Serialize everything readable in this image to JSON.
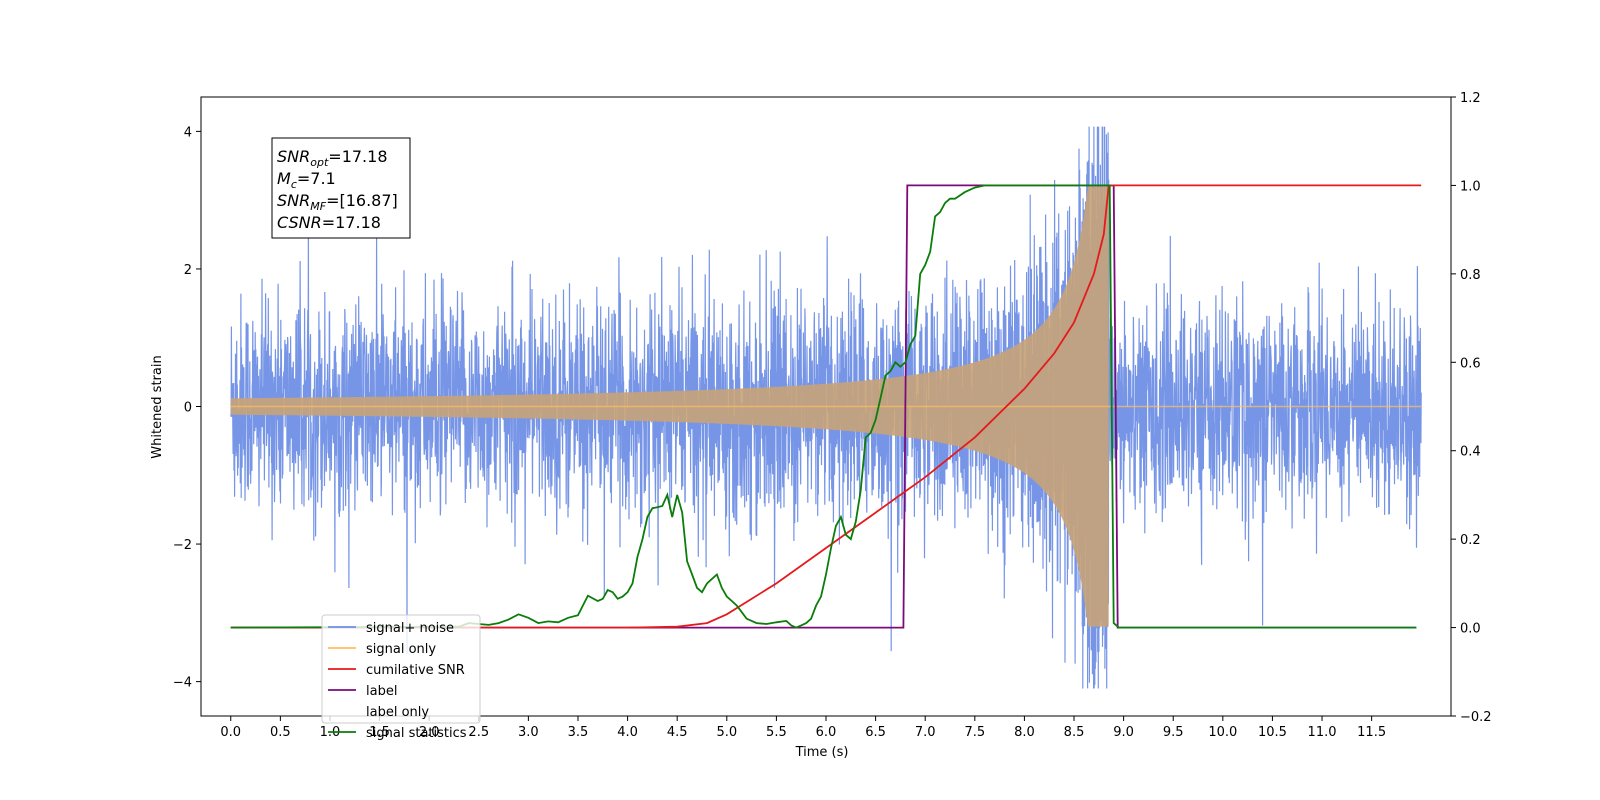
{
  "chart_data": {
    "type": "line",
    "xlabel": "Time (s)",
    "ylabel": "Whitened strain",
    "x_ticks": [
      "0.0",
      "0.5",
      "1.0",
      "1.5",
      "2.0",
      "2.5",
      "3.0",
      "3.5",
      "4.0",
      "4.5",
      "5.0",
      "5.5",
      "6.0",
      "6.5",
      "7.0",
      "7.5",
      "8.0",
      "8.5",
      "9.0",
      "9.5",
      "10.0",
      "10.5",
      "11.0",
      "11.5"
    ],
    "y_left_ticks": [
      "4",
      "2",
      "0",
      "−2",
      "−4"
    ],
    "y_right_ticks": [
      "1.2",
      "1.0",
      "0.8",
      "0.6",
      "0.4",
      "0.2",
      "0.0",
      "−0.2"
    ],
    "xlim": [
      -0.3,
      12.3
    ],
    "ylim_left": [
      -4.5,
      4.5
    ],
    "ylim_right": [
      -0.2,
      1.2
    ],
    "x_range": [
      0.0,
      12.0
    ],
    "legend_position": "lower-left",
    "annotation_box": [
      {
        "base": "SNR",
        "sub": "opt",
        "rest": "=17.18"
      },
      {
        "base": "M",
        "sub": "c",
        "rest": "=7.1"
      },
      {
        "base": "SNR",
        "sub": "MF",
        "rest": "=[16.87]"
      },
      {
        "base": "CSNR",
        "sub": "",
        "rest": "=17.18"
      }
    ],
    "series": [
      {
        "name": "signal+ noise",
        "color": "#6f8fe6",
        "axis": "left",
        "description_values": {
          "noise_std": 0.75,
          "peak_max": 4.07,
          "min": -4.1
        }
      },
      {
        "name": "signal only",
        "color": "#ffbf60",
        "axis": "left",
        "chirp": {
          "start": 0.0,
          "merger": 8.85,
          "peak_amplitude": 3.2,
          "end": 12.0
        }
      },
      {
        "name": "cumilative SNR",
        "color": "#e41a1c",
        "axis": "right",
        "x": [
          0.0,
          4.0,
          4.5,
          4.8,
          5.0,
          5.5,
          6.0,
          6.5,
          7.0,
          7.5,
          8.0,
          8.3,
          8.5,
          8.7,
          8.8,
          8.85,
          12.0
        ],
        "y": [
          0.0,
          0.0,
          0.002,
          0.01,
          0.03,
          0.1,
          0.18,
          0.26,
          0.34,
          0.43,
          0.54,
          0.62,
          0.69,
          0.8,
          0.89,
          1.0,
          1.0
        ]
      },
      {
        "name": "label",
        "color": "#7b0a7b",
        "axis": "right",
        "x": [
          0.0,
          6.78,
          6.82,
          8.9,
          8.94,
          11.95
        ],
        "y": [
          0.0,
          0.0,
          1.0,
          1.0,
          0.0,
          0.0
        ]
      },
      {
        "name": "label only",
        "color": "#888888",
        "axis": "right",
        "x": [],
        "y": []
      },
      {
        "name": "signal statistics",
        "color": "#0a7d0a",
        "axis": "right",
        "x": [
          0.0,
          2.3,
          2.4,
          2.5,
          2.6,
          2.7,
          2.8,
          2.9,
          3.0,
          3.1,
          3.2,
          3.3,
          3.4,
          3.5,
          3.55,
          3.6,
          3.7,
          3.75,
          3.8,
          3.85,
          3.9,
          3.95,
          4.0,
          4.05,
          4.1,
          4.15,
          4.2,
          4.25,
          4.3,
          4.35,
          4.4,
          4.45,
          4.5,
          4.55,
          4.6,
          4.65,
          4.7,
          4.75,
          4.8,
          4.85,
          4.9,
          4.95,
          5.0,
          5.05,
          5.1,
          5.15,
          5.2,
          5.3,
          5.4,
          5.5,
          5.6,
          5.65,
          5.7,
          5.75,
          5.8,
          5.85,
          5.9,
          5.95,
          6.0,
          6.05,
          6.1,
          6.15,
          6.2,
          6.25,
          6.3,
          6.35,
          6.4,
          6.45,
          6.5,
          6.55,
          6.6,
          6.65,
          6.7,
          6.75,
          6.8,
          6.85,
          6.9,
          6.95,
          7.0,
          7.05,
          7.1,
          7.15,
          7.2,
          7.25,
          7.3,
          7.4,
          7.5,
          7.6,
          7.7,
          8.8,
          8.86,
          8.9,
          8.95,
          11.95
        ],
        "y": [
          0.0,
          0.002,
          0.01,
          0.008,
          0.006,
          0.01,
          0.018,
          0.03,
          0.022,
          0.01,
          0.014,
          0.012,
          0.022,
          0.028,
          0.05,
          0.072,
          0.06,
          0.065,
          0.085,
          0.08,
          0.065,
          0.07,
          0.08,
          0.1,
          0.16,
          0.2,
          0.25,
          0.27,
          0.272,
          0.275,
          0.3,
          0.25,
          0.3,
          0.26,
          0.15,
          0.12,
          0.09,
          0.08,
          0.1,
          0.11,
          0.12,
          0.09,
          0.07,
          0.06,
          0.05,
          0.035,
          0.02,
          0.01,
          0.008,
          0.012,
          0.015,
          0.005,
          0.0,
          0.005,
          0.01,
          0.02,
          0.05,
          0.07,
          0.12,
          0.18,
          0.23,
          0.25,
          0.21,
          0.2,
          0.24,
          0.31,
          0.43,
          0.44,
          0.47,
          0.52,
          0.57,
          0.58,
          0.6,
          0.59,
          0.6,
          0.64,
          0.66,
          0.8,
          0.82,
          0.85,
          0.93,
          0.94,
          0.96,
          0.97,
          0.97,
          0.985,
          0.995,
          1.0,
          1.0,
          1.0,
          1.0,
          0.01,
          0.0,
          0.0
        ]
      }
    ]
  }
}
